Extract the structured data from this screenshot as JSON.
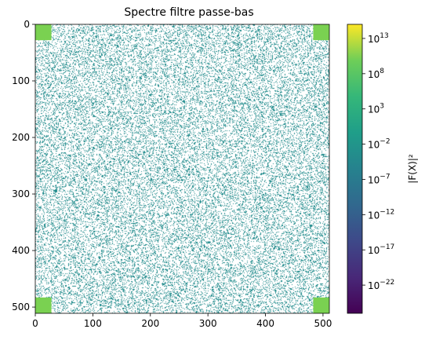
{
  "chart_data": {
    "type": "heatmap",
    "title": "Spectre filtre passe-bas",
    "xlabel": "",
    "ylabel": "",
    "xlim": [
      0,
      511
    ],
    "ylim": [
      511,
      0
    ],
    "x_ticks": [
      "0",
      "100",
      "200",
      "300",
      "400",
      "500"
    ],
    "y_ticks": [
      "0",
      "100",
      "200",
      "300",
      "400",
      "500"
    ],
    "colormap": "viridis",
    "colorbar": {
      "label": "|F(X)|²",
      "scale": "log",
      "range_exp": [
        -26,
        15
      ],
      "ticks": [
        {
          "base": "10",
          "exp": "13"
        },
        {
          "base": "10",
          "exp": "8"
        },
        {
          "base": "10",
          "exp": "3"
        },
        {
          "base": "10",
          "exp": "−2"
        },
        {
          "base": "10",
          "exp": "−7"
        },
        {
          "base": "10",
          "exp": "−12"
        },
        {
          "base": "10",
          "exp": "−17"
        },
        {
          "base": "10",
          "exp": "−22"
        }
      ]
    },
    "passband_corners": {
      "size": 28,
      "level_exp": 7,
      "color": "#7ad151"
    },
    "noise": {
      "level_exp": -3,
      "color": "#1f8b8c",
      "density": 0.22
    },
    "grid": false
  }
}
